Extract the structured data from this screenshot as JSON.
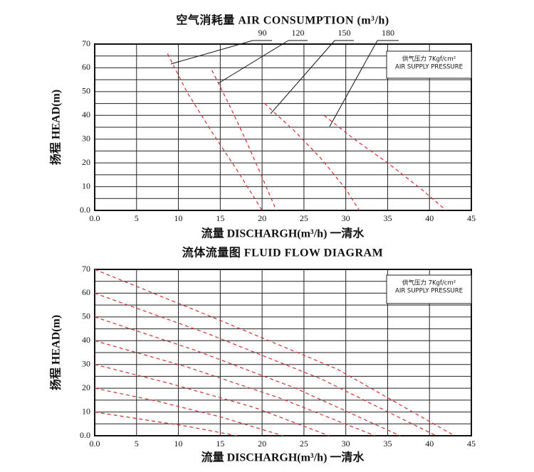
{
  "chart_data": [
    {
      "type": "line",
      "title": "空气消耗量  AIR CONSUMPTION (m³/h)",
      "x_label": "流量  DISCHARGH(m³/h) 一清水",
      "y_label": "扬程 HEAD(m)",
      "annotation": [
        "供气压力 7Kgf/cm²",
        "AIR SUPPLY PRESSURE"
      ],
      "xlim": [
        0,
        45
      ],
      "xticks": [
        {
          "value": 0,
          "label": "0.0"
        },
        5,
        10,
        15,
        20,
        25,
        30,
        35,
        40,
        45
      ],
      "ylim": [
        0,
        70
      ],
      "yticks": [
        {
          "value": 0,
          "label": "0.0"
        },
        10,
        20,
        30,
        40,
        50,
        60,
        70
      ],
      "yminor": [
        5,
        15,
        25,
        35,
        45,
        55,
        65
      ],
      "grid": true,
      "series": [
        {
          "name": "90",
          "color": "#d0312d",
          "x": [
            8.7,
            11,
            14,
            17,
            20
          ],
          "values": [
            66,
            50,
            33,
            17,
            0
          ]
        },
        {
          "name": "120",
          "color": "#d0312d",
          "x": [
            14,
            16,
            18,
            20,
            21.7
          ],
          "values": [
            59,
            45,
            30,
            14,
            0
          ]
        },
        {
          "name": "150",
          "color": "#d0312d",
          "x": [
            20.3,
            24,
            27,
            30,
            31.6
          ],
          "values": [
            45,
            33,
            22,
            9,
            0
          ]
        },
        {
          "name": "180",
          "color": "#d0312d",
          "x": [
            27.4,
            31,
            35,
            39,
            42
          ],
          "values": [
            40,
            30,
            20,
            9,
            0
          ]
        }
      ]
    },
    {
      "type": "line",
      "title": "流体流量图  FLUID FLOW DIAGRAM",
      "x_label": "流量  DISCHARGH(m³/h) 一清水",
      "y_label": "扬程 HEAD(m)",
      "annotation": [
        "供气压力 7Kgf/cm²",
        "AIR SUPPLY PRESSURE"
      ],
      "xlim": [
        0,
        45
      ],
      "xticks": [
        {
          "value": 0,
          "label": "0.0"
        },
        5,
        10,
        15,
        20,
        25,
        30,
        35,
        40,
        45
      ],
      "ylim": [
        0,
        70
      ],
      "yticks": [
        {
          "value": 0,
          "label": "0.0"
        },
        10,
        20,
        30,
        40,
        50,
        60,
        70
      ],
      "yminor": [
        5,
        15,
        25,
        35,
        45,
        55,
        65
      ],
      "grid": true,
      "series": [
        {
          "color": "#d0312d",
          "x": [
            0,
            14,
            29,
            43
          ],
          "values": [
            70,
            50,
            28,
            0
          ]
        },
        {
          "color": "#d0312d",
          "x": [
            0,
            13.5,
            27,
            40.8
          ],
          "values": [
            60,
            43,
            24,
            0
          ]
        },
        {
          "color": "#d0312d",
          "x": [
            0,
            12,
            24,
            36.5
          ],
          "values": [
            50,
            36,
            20,
            0
          ]
        },
        {
          "color": "#d0312d",
          "x": [
            0,
            11,
            22,
            33.5
          ],
          "values": [
            40,
            29,
            16,
            0
          ]
        },
        {
          "color": "#d0312d",
          "x": [
            0,
            9,
            19,
            28
          ],
          "values": [
            30,
            22,
            12,
            0
          ]
        },
        {
          "color": "#d0312d",
          "x": [
            0,
            7.5,
            15,
            22.5
          ],
          "values": [
            20,
            14.5,
            8,
            0
          ]
        },
        {
          "color": "#d0312d",
          "x": [
            0,
            5.5,
            11,
            17
          ],
          "values": [
            10,
            7,
            4,
            0
          ]
        }
      ]
    }
  ]
}
